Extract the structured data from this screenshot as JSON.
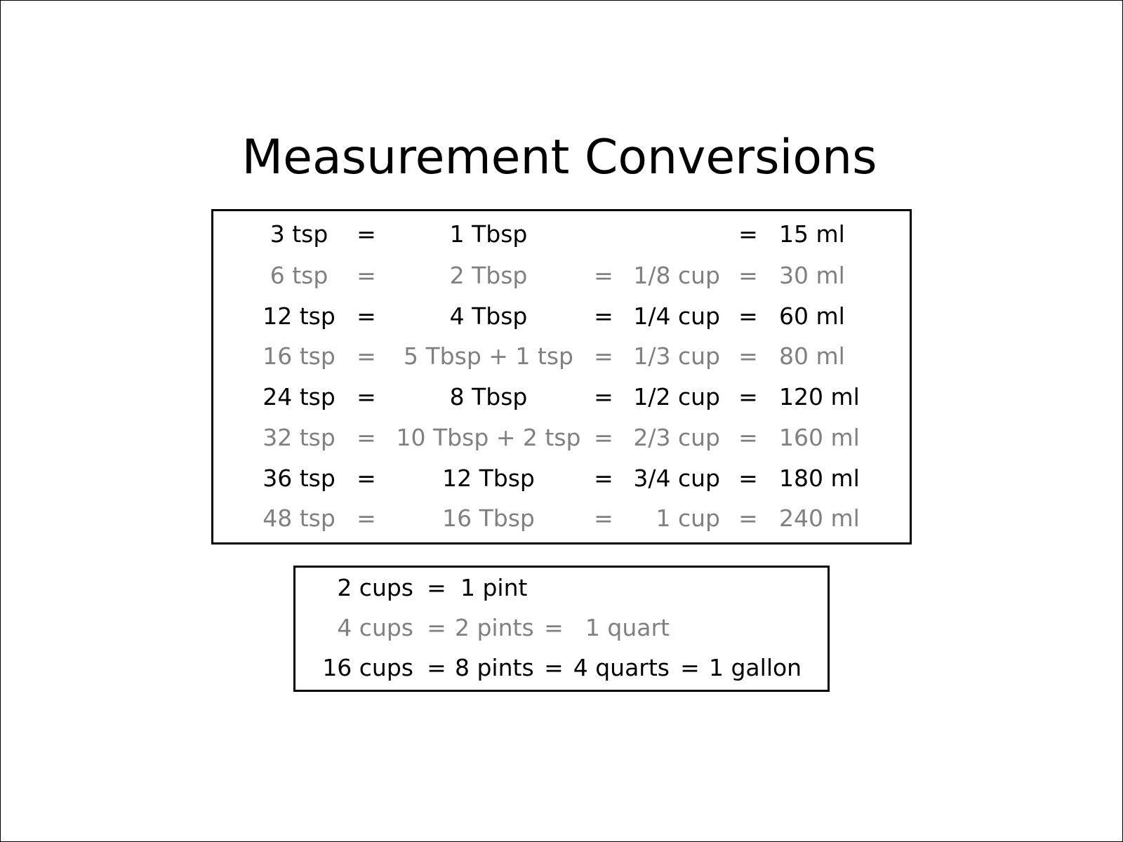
{
  "title": "Measurement Conversions",
  "colors": {
    "primary_text": "#000000",
    "alternate_text": "#808080",
    "border": "#000000"
  },
  "volume_table": [
    {
      "tsp": "3 tsp",
      "tbsp": "1 Tbsp",
      "cup": "",
      "ml": "15 ml",
      "style": "black"
    },
    {
      "tsp": "6 tsp",
      "tbsp": "2 Tbsp",
      "cup": "1/8 cup",
      "ml": "30 ml",
      "style": "gray"
    },
    {
      "tsp": "12 tsp",
      "tbsp": "4 Tbsp",
      "cup": "1/4 cup",
      "ml": "60 ml",
      "style": "black"
    },
    {
      "tsp": "16 tsp",
      "tbsp": "5 Tbsp + 1 tsp",
      "cup": "1/3 cup",
      "ml": "80 ml",
      "style": "gray"
    },
    {
      "tsp": "24 tsp",
      "tbsp": "8 Tbsp",
      "cup": "1/2 cup",
      "ml": "120 ml",
      "style": "black"
    },
    {
      "tsp": "32 tsp",
      "tbsp": "10 Tbsp + 2 tsp",
      "cup": "2/3 cup",
      "ml": "160 ml",
      "style": "gray"
    },
    {
      "tsp": "36 tsp",
      "tbsp": "12 Tbsp",
      "cup": "3/4 cup",
      "ml": "180 ml",
      "style": "black"
    },
    {
      "tsp": "48 tsp",
      "tbsp": "16 Tbsp",
      "cup": "1 cup",
      "ml": "240 ml",
      "style": "gray"
    }
  ],
  "equals_sign": "=",
  "liquid_table": [
    {
      "cups": "2 cups",
      "pints": "1 pint",
      "quarts": "",
      "gallon": "",
      "style": "black"
    },
    {
      "cups": "4 cups",
      "pints": "2 pints",
      "quarts": "1 quart",
      "gallon": "",
      "style": "gray"
    },
    {
      "cups": "16 cups",
      "pints": "8 pints",
      "quarts": "4 quarts",
      "gallon": "1 gallon",
      "style": "black"
    }
  ]
}
